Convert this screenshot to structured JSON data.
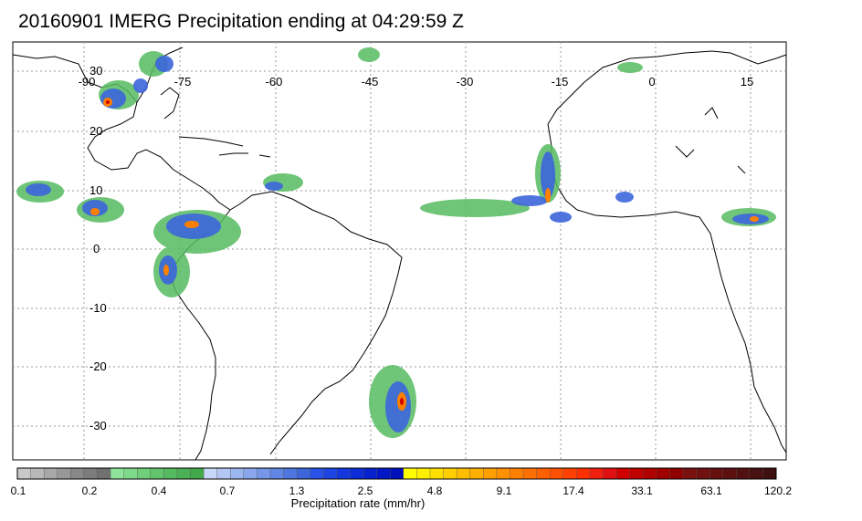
{
  "title": "20160901 IMERG Precipitation ending at 04:29:59 Z",
  "lon_labels": [
    "-90",
    "-75",
    "-60",
    "-45",
    "-30",
    "-15",
    "0",
    "15"
  ],
  "lat_labels": [
    "30",
    "20",
    "10",
    "0",
    "-10",
    "-20",
    "-30"
  ],
  "colorbar": {
    "tick_labels": [
      "0.1",
      "0.2",
      "0.4",
      "0.7",
      "1.3",
      "2.5",
      "4.8",
      "9.1",
      "17.4",
      "33.1",
      "63.1",
      "120.2"
    ],
    "label": "Precipitation rate (mm/hr)",
    "colors": [
      "#c9c9c9",
      "#b9b9b9",
      "#a8a8a8",
      "#989898",
      "#888888",
      "#7c7c7c",
      "#707070",
      "#8fe39a",
      "#7fd98a",
      "#70cf7a",
      "#62c56c",
      "#56bb60",
      "#4bb155",
      "#42a84b",
      "#c8d6f7",
      "#b3c6f4",
      "#9eb6f0",
      "#8aa6ec",
      "#7696e8",
      "#6286e4",
      "#4f76df",
      "#3d66db",
      "#2b52e6",
      "#1f44e4",
      "#1538de",
      "#0c2cd8",
      "#0622cf",
      "#0218c6",
      "#0010bb",
      "#ffff00",
      "#ffef00",
      "#ffdf00",
      "#ffcf00",
      "#ffbf00",
      "#ffaf00",
      "#ff9f00",
      "#ff9000",
      "#ff8000",
      "#ff7000",
      "#ff6000",
      "#ff5000",
      "#ff4000",
      "#ff3000",
      "#f02010",
      "#e01010",
      "#d00000",
      "#c00000",
      "#b00000",
      "#a00000",
      "#900000",
      "#7a1010",
      "#701010",
      "#661010",
      "#5c1010",
      "#521010",
      "#481010",
      "#3e1010"
    ]
  }
}
